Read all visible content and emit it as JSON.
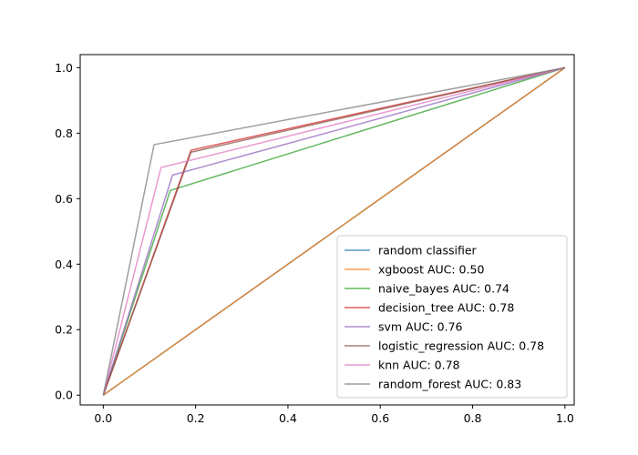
{
  "chart_data": {
    "type": "line",
    "title": "",
    "xlabel": "",
    "ylabel": "",
    "xlim": [
      -0.05,
      1.02
    ],
    "ylim": [
      -0.03,
      1.04
    ],
    "xticks": [
      "0.0",
      "0.2",
      "0.4",
      "0.6",
      "0.8",
      "1.0"
    ],
    "yticks": [
      "0.0",
      "0.2",
      "0.4",
      "0.6",
      "0.8",
      "1.0"
    ],
    "grid": false,
    "legend_position": "lower-right",
    "series": [
      {
        "name": "random classifier",
        "color": "#1f77b4",
        "x": [
          0,
          1
        ],
        "y": [
          0,
          1
        ]
      },
      {
        "name": "xgboost AUC: 0.50",
        "color": "#ff7f0e",
        "x": [
          0,
          1
        ],
        "y": [
          0,
          1
        ]
      },
      {
        "name": "naive_bayes AUC: 0.74",
        "color": "#2ca02c",
        "x": [
          0,
          0.145,
          1
        ],
        "y": [
          0,
          0.625,
          1
        ]
      },
      {
        "name": "decision_tree AUC: 0.78",
        "color": "#d62728",
        "x": [
          0,
          0.19,
          1
        ],
        "y": [
          0,
          0.748,
          1
        ]
      },
      {
        "name": "svm AUC: 0.76",
        "color": "#9467bd",
        "x": [
          0,
          0.15,
          1
        ],
        "y": [
          0,
          0.672,
          1
        ]
      },
      {
        "name": "logistic_regression AUC: 0.78",
        "color": "#8c564b",
        "x": [
          0,
          0.19,
          1
        ],
        "y": [
          0,
          0.742,
          1
        ]
      },
      {
        "name": "knn AUC: 0.78",
        "color": "#e377c2",
        "x": [
          0,
          0.125,
          1
        ],
        "y": [
          0,
          0.695,
          1
        ]
      },
      {
        "name": "random_forest AUC: 0.83",
        "color": "#7f7f7f",
        "x": [
          0,
          0.11,
          1
        ],
        "y": [
          0,
          0.765,
          1
        ]
      }
    ]
  }
}
